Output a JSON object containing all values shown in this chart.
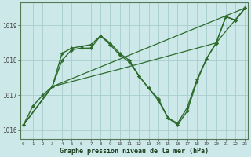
{
  "background_color": "#cce8e8",
  "grid_color": "#a8cccc",
  "line_color": "#2d6b2d",
  "xlabel": "Graphe pression niveau de la mer (hPa)",
  "ylim": [
    1015.75,
    1019.65
  ],
  "xlim": [
    -0.3,
    23.3
  ],
  "yticks": [
    1016,
    1017,
    1018,
    1019
  ],
  "xticks": [
    0,
    1,
    2,
    3,
    4,
    5,
    6,
    7,
    8,
    9,
    10,
    11,
    12,
    13,
    14,
    15,
    16,
    17,
    18,
    19,
    20,
    21,
    22,
    23
  ],
  "series": [
    {
      "x": [
        0,
        1,
        2,
        3,
        4,
        5,
        6,
        7,
        8,
        9,
        10,
        11,
        12,
        13,
        14,
        15,
        16,
        17,
        18,
        19,
        20,
        21,
        22,
        23
      ],
      "y": [
        1016.15,
        1016.7,
        1017.0,
        1017.25,
        1018.2,
        1018.35,
        1018.4,
        1018.45,
        1018.7,
        1018.5,
        1018.2,
        1018.0,
        1017.55,
        1017.2,
        1016.9,
        1016.35,
        1016.15,
        1016.55,
        1017.4,
        1018.05,
        1018.5,
        1019.25,
        1019.15,
        1019.5
      ],
      "markers": true,
      "linewidth": 1.0
    },
    {
      "x": [
        0,
        3,
        23
      ],
      "y": [
        1016.15,
        1017.25,
        1019.5
      ],
      "markers": false,
      "linewidth": 0.9
    },
    {
      "x": [
        0,
        3,
        10,
        20,
        23
      ],
      "y": [
        1016.15,
        1017.25,
        1017.75,
        1018.5,
        1019.5
      ],
      "markers": false,
      "linewidth": 0.9
    },
    {
      "x": [
        0,
        3,
        4,
        5,
        6,
        7,
        8,
        9,
        10,
        11,
        12,
        13,
        14,
        15,
        16,
        17,
        18,
        19,
        20,
        21,
        22,
        23
      ],
      "y": [
        1016.15,
        1017.25,
        1018.0,
        1018.3,
        1018.35,
        1018.35,
        1018.7,
        1018.45,
        1018.15,
        1017.95,
        1017.55,
        1017.2,
        1016.85,
        1016.35,
        1016.2,
        1016.65,
        1017.45,
        1018.05,
        1018.5,
        1019.25,
        1019.15,
        1019.5
      ],
      "markers": true,
      "linewidth": 1.0
    }
  ]
}
